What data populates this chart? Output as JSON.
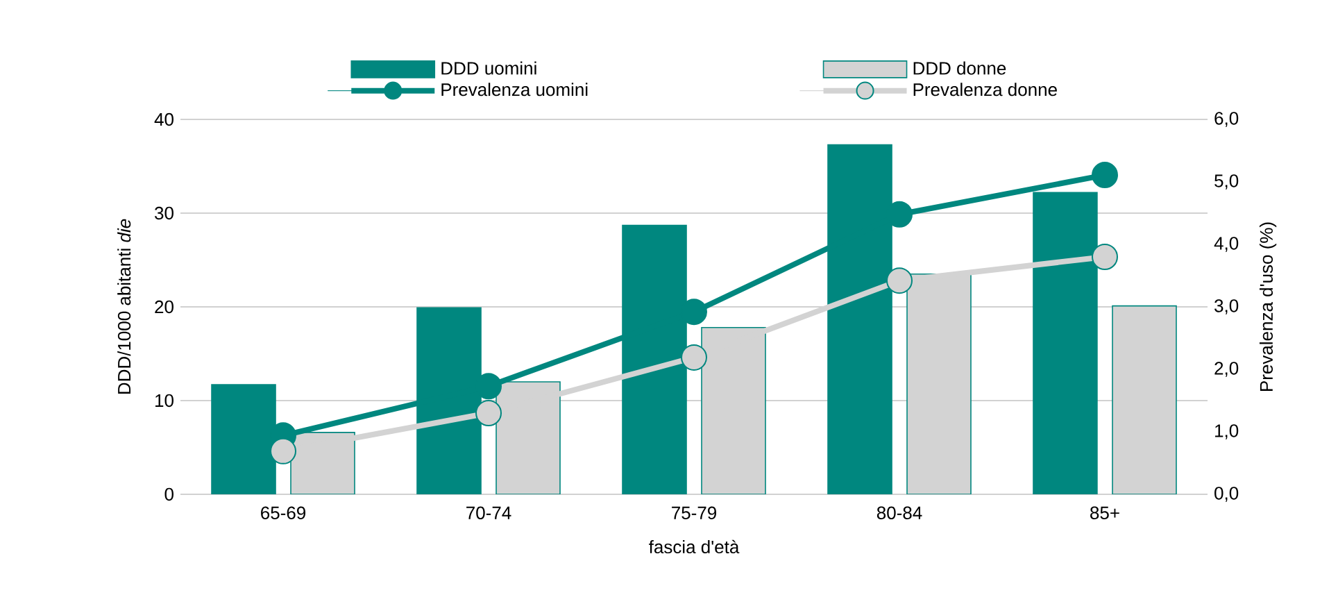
{
  "chart_data": {
    "type": "bar",
    "xlabel": "fascia d'età",
    "ylabel": "DDD/1000 abitanti *die*",
    "y2label": "Prevalenza d'uso (%)",
    "categories": [
      "65-69",
      "70-74",
      "75-79",
      "80-84",
      "85+"
    ],
    "series": [
      {
        "name": "DDD uomini",
        "color": "#00877f",
        "values": [
          11.7,
          19.9,
          28.7,
          37.3,
          32.2
        ]
      },
      {
        "name": "DDD donne",
        "color": "#d3d3d3",
        "values": [
          6.6,
          12.0,
          17.8,
          23.5,
          20.1
        ]
      },
      {
        "name": "Prevalenza uomini",
        "color": "#00877f",
        "type": "line",
        "axis": "y2",
        "values": [
          0.94,
          1.73,
          2.92,
          4.48,
          5.11
        ]
      },
      {
        "name": "Prevalenza donne",
        "color": "#d3d3d3",
        "type": "line",
        "axis": "y2",
        "values": [
          0.69,
          1.3,
          2.19,
          3.42,
          3.8
        ]
      }
    ],
    "ylim": [
      0,
      40
    ],
    "yticks": [
      0,
      10,
      20,
      30,
      40
    ],
    "y2lim": [
      0,
      6
    ],
    "y2ticks": [
      {
        "value": 0,
        "label": "0,0"
      },
      {
        "value": 1,
        "label": "1,0"
      },
      {
        "value": 2,
        "label": "2,0"
      },
      {
        "value": 3,
        "label": "3,0"
      },
      {
        "value": 4,
        "label": "4,0"
      },
      {
        "value": 5,
        "label": "5,0"
      },
      {
        "value": 6,
        "label": "6,0"
      }
    ],
    "grid": "y",
    "legend": "top",
    "marker": "circle"
  }
}
